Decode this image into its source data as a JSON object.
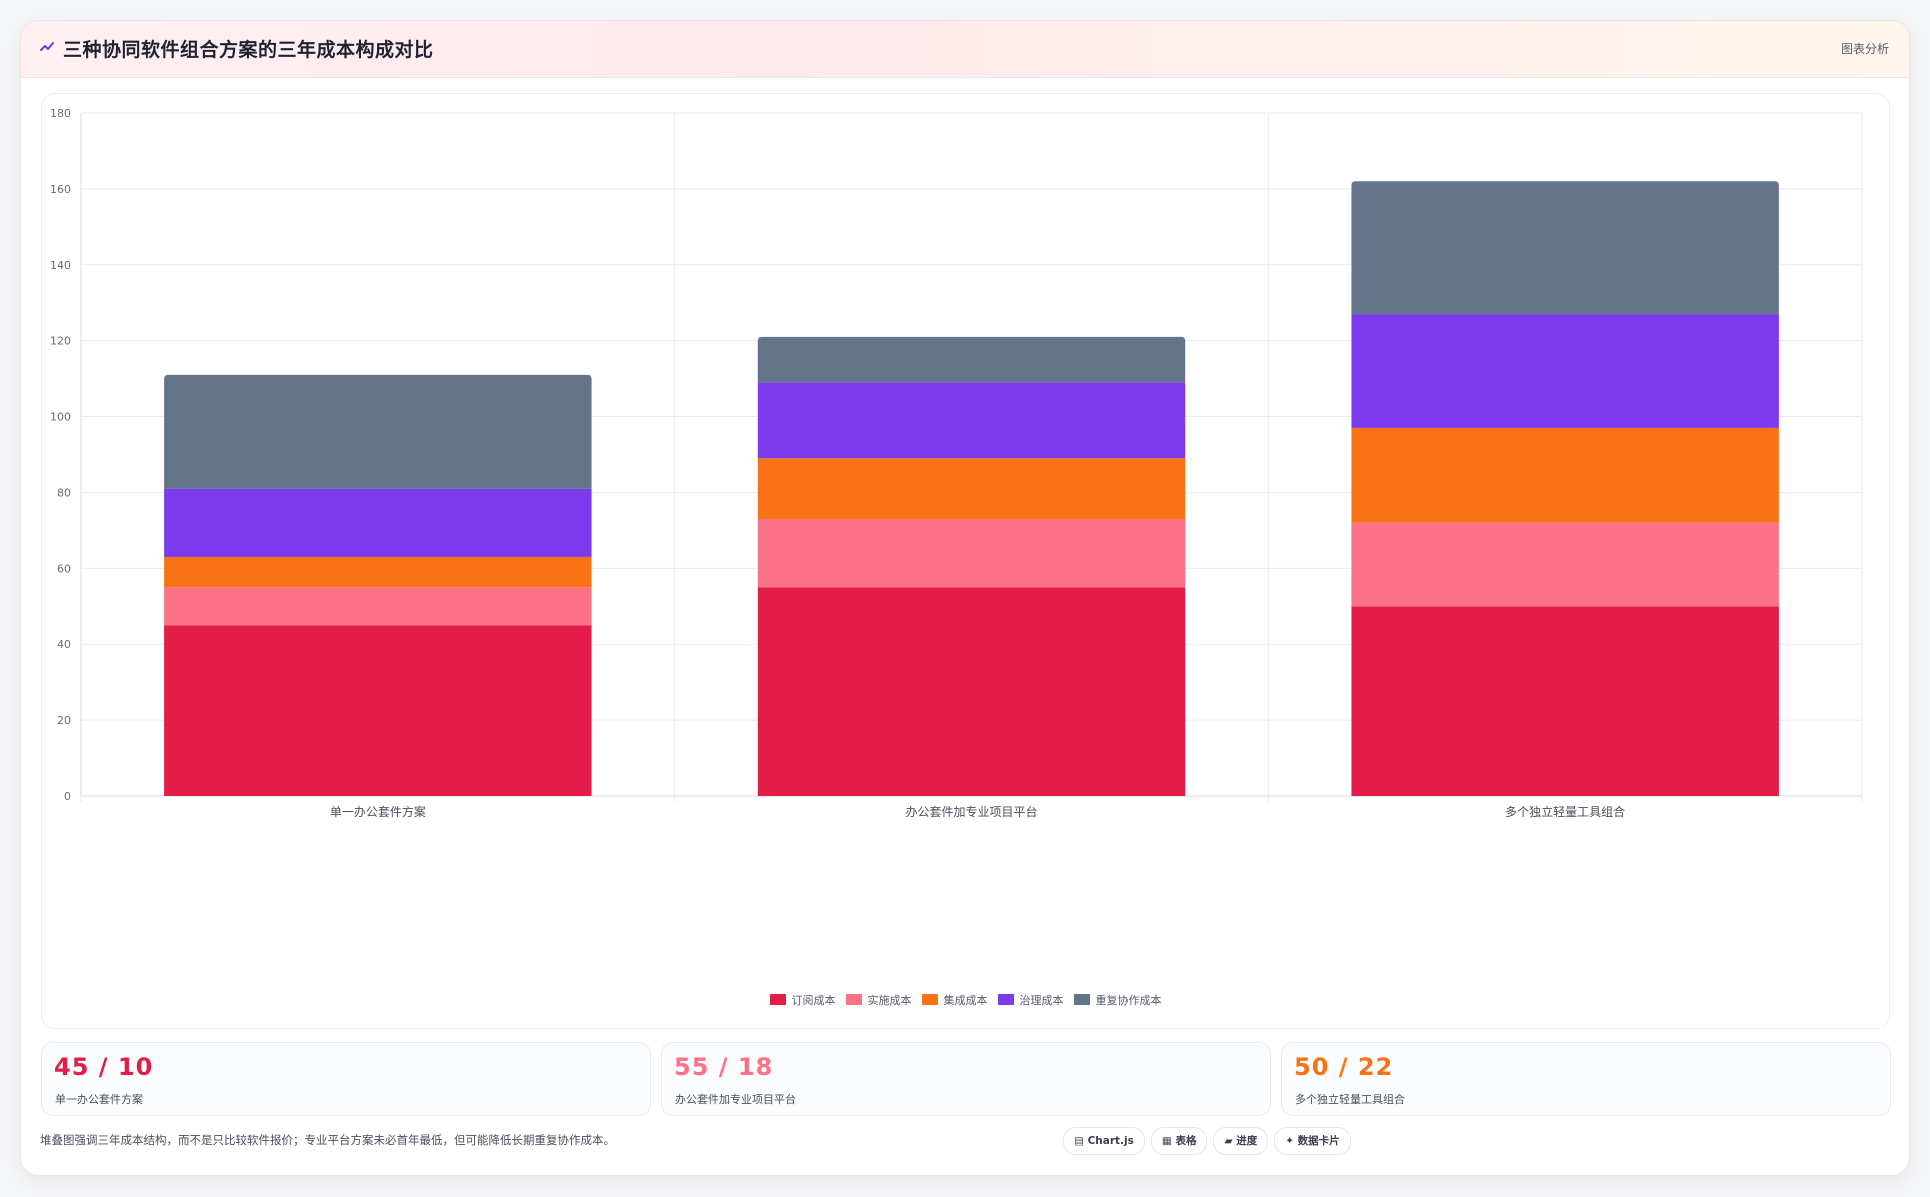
{
  "header": {
    "title": "三种协同软件组合方案的三年成本构成对比",
    "link_label": "图表分析"
  },
  "chart_data": {
    "type": "bar",
    "stacked": true,
    "categories": [
      "单一办公套件方案",
      "办公套件加专业项目平台",
      "多个独立轻量工具组合"
    ],
    "series": [
      {
        "name": "订阅成本",
        "color": "#e11d48",
        "values": [
          45,
          55,
          50
        ]
      },
      {
        "name": "实施成本",
        "color": "#fb7185",
        "values": [
          10,
          18,
          22
        ]
      },
      {
        "name": "集成成本",
        "color": "#f97316",
        "values": [
          8,
          16,
          25
        ]
      },
      {
        "name": "治理成本",
        "color": "#7c3aed",
        "values": [
          18,
          20,
          30
        ]
      },
      {
        "name": "重复协作成本",
        "color": "#64748b",
        "values": [
          30,
          12,
          35
        ]
      }
    ],
    "ylim": [
      0,
      180
    ],
    "yticks": [
      0,
      20,
      40,
      60,
      80,
      100,
      120,
      140,
      160,
      180
    ],
    "grid": true,
    "legend_position": "bottom",
    "xlabel": "",
    "ylabel": ""
  },
  "stats": [
    {
      "value": "45 / 10",
      "label": "单一办公套件方案",
      "color": "#e11d48"
    },
    {
      "value": "55 / 18",
      "label": "办公套件加专业项目平台",
      "color": "#fb7185"
    },
    {
      "value": "50 / 22",
      "label": "多个独立轻量工具组合",
      "color": "#f97316"
    }
  ],
  "footer": {
    "note": "堆叠图强调三年成本结构，而不是只比较软件报价；专业平台方案未必首年最低，但可能降低长期重复协作成本。"
  },
  "pills": [
    {
      "label": "▤ Chart.js",
      "icon": "chart-icon"
    },
    {
      "label": "▦ 表格",
      "icon": "table-icon"
    },
    {
      "label": "▰ 进度",
      "icon": "progress-icon"
    },
    {
      "label": "✦ 数据卡片",
      "icon": "sparkle-icon"
    }
  ]
}
